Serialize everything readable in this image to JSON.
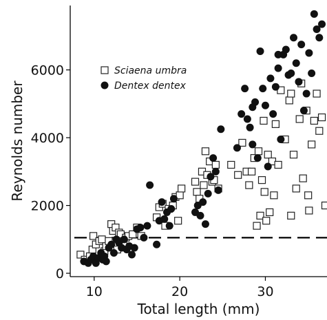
{
  "chart_data": {
    "type": "scatter",
    "xlabel": "Total length (mm)",
    "ylabel": "Reynolds number",
    "xlim": [
      7.2,
      37.2
    ],
    "ylim": [
      -100,
      7900
    ],
    "x_ticks": [
      10,
      20,
      30
    ],
    "y_ticks": [
      0,
      2000,
      4000,
      6000
    ],
    "grid": false,
    "legend_position": "top-left",
    "reference_line": {
      "y": 1050,
      "style": "dashed"
    },
    "series": [
      {
        "name": "Sciaena umbra",
        "marker": "open-square",
        "color": "#222222",
        "points": [
          [
            8.4,
            550
          ],
          [
            8.9,
            400
          ],
          [
            9.5,
            500
          ],
          [
            9.8,
            700
          ],
          [
            9.9,
            1100
          ],
          [
            10.2,
            850
          ],
          [
            10.6,
            950
          ],
          [
            10.9,
            1000
          ],
          [
            11.2,
            650
          ],
          [
            11.4,
            800
          ],
          [
            11.7,
            950
          ],
          [
            12.0,
            1450
          ],
          [
            12.2,
            1250
          ],
          [
            12.5,
            1350
          ],
          [
            12.7,
            700
          ],
          [
            12.9,
            1200
          ],
          [
            13.1,
            1150
          ],
          [
            13.4,
            900
          ],
          [
            13.7,
            1050
          ],
          [
            14.0,
            1100
          ],
          [
            14.5,
            1150
          ],
          [
            15.0,
            1350
          ],
          [
            15.5,
            1100
          ],
          [
            17.3,
            1650
          ],
          [
            17.6,
            1950
          ],
          [
            18.0,
            2050
          ],
          [
            18.3,
            1400
          ],
          [
            18.7,
            1900
          ],
          [
            19.2,
            2000
          ],
          [
            19.5,
            2250
          ],
          [
            19.8,
            1550
          ],
          [
            20.0,
            2300
          ],
          [
            20.2,
            2500
          ],
          [
            21.8,
            2700
          ],
          [
            22.0,
            2400
          ],
          [
            22.3,
            2200
          ],
          [
            22.6,
            3000
          ],
          [
            22.8,
            2600
          ],
          [
            23.0,
            3600
          ],
          [
            23.2,
            2900
          ],
          [
            23.5,
            3300
          ],
          [
            23.8,
            2700
          ],
          [
            24.0,
            2750
          ],
          [
            24.2,
            3200
          ],
          [
            24.5,
            2500
          ],
          [
            26.0,
            3200
          ],
          [
            26.8,
            2900
          ],
          [
            27.3,
            3850
          ],
          [
            27.8,
            3000
          ],
          [
            28.1,
            2600
          ],
          [
            28.4,
            3000
          ],
          [
            28.7,
            3400
          ],
          [
            29.0,
            1400
          ],
          [
            29.2,
            3600
          ],
          [
            29.4,
            1700
          ],
          [
            29.6,
            2750
          ],
          [
            29.9,
            2400
          ],
          [
            30.1,
            1550
          ],
          [
            30.3,
            3500
          ],
          [
            30.5,
            1800
          ],
          [
            30.8,
            3300
          ],
          [
            31.0,
            2300
          ],
          [
            31.2,
            4400
          ],
          [
            31.5,
            3200
          ],
          [
            31.8,
            5400
          ],
          [
            32.3,
            3950
          ],
          [
            32.8,
            5100
          ],
          [
            33.0,
            1700
          ],
          [
            33.3,
            3500
          ],
          [
            33.6,
            2500
          ],
          [
            34.0,
            4550
          ],
          [
            34.4,
            2800
          ],
          [
            34.8,
            4800
          ],
          [
            35.1,
            1850
          ],
          [
            35.4,
            3800
          ],
          [
            35.7,
            4500
          ],
          [
            36.0,
            5300
          ],
          [
            36.3,
            4200
          ],
          [
            36.6,
            4600
          ],
          [
            37.0,
            2000
          ],
          [
            35.0,
            2300
          ],
          [
            34.2,
            5600
          ],
          [
            33.0,
            5300
          ],
          [
            29.8,
            4500
          ]
        ]
      },
      {
        "name": "Dentex dentex",
        "marker": "filled-circle",
        "color": "#111111",
        "points": [
          [
            8.8,
            350
          ],
          [
            9.3,
            300
          ],
          [
            9.6,
            400
          ],
          [
            9.9,
            500
          ],
          [
            10.2,
            300
          ],
          [
            10.5,
            450
          ],
          [
            10.8,
            600
          ],
          [
            11.0,
            400
          ],
          [
            11.2,
            500
          ],
          [
            11.4,
            350
          ],
          [
            11.7,
            750
          ],
          [
            12.0,
            850
          ],
          [
            12.3,
            600
          ],
          [
            12.6,
            1000
          ],
          [
            12.9,
            900
          ],
          [
            13.2,
            750
          ],
          [
            13.5,
            1000
          ],
          [
            13.8,
            700
          ],
          [
            14.1,
            800
          ],
          [
            14.4,
            550
          ],
          [
            14.7,
            750
          ],
          [
            15.0,
            1300
          ],
          [
            15.4,
            1350
          ],
          [
            15.8,
            1050
          ],
          [
            16.2,
            1400
          ],
          [
            16.5,
            2600
          ],
          [
            17.3,
            850
          ],
          [
            17.6,
            1550
          ],
          [
            17.9,
            2100
          ],
          [
            18.2,
            1600
          ],
          [
            18.5,
            1800
          ],
          [
            18.8,
            1400
          ],
          [
            19.0,
            1900
          ],
          [
            19.3,
            2200
          ],
          [
            21.8,
            1800
          ],
          [
            22.1,
            2000
          ],
          [
            22.4,
            1700
          ],
          [
            22.7,
            2100
          ],
          [
            23.0,
            1450
          ],
          [
            23.3,
            2350
          ],
          [
            23.6,
            2850
          ],
          [
            23.9,
            3400
          ],
          [
            24.2,
            3000
          ],
          [
            24.5,
            2450
          ],
          [
            24.8,
            4250
          ],
          [
            26.7,
            3700
          ],
          [
            27.2,
            4700
          ],
          [
            27.6,
            5450
          ],
          [
            27.9,
            4550
          ],
          [
            28.2,
            4300
          ],
          [
            28.5,
            3800
          ],
          [
            28.8,
            5050
          ],
          [
            29.1,
            3400
          ],
          [
            29.4,
            6550
          ],
          [
            29.7,
            5450
          ],
          [
            30.0,
            4950
          ],
          [
            30.3,
            3150
          ],
          [
            30.6,
            5750
          ],
          [
            30.9,
            4700
          ],
          [
            31.2,
            5500
          ],
          [
            31.5,
            6050
          ],
          [
            31.8,
            3950
          ],
          [
            32.1,
            6450
          ],
          [
            32.4,
            6600
          ],
          [
            32.7,
            5850
          ],
          [
            33.0,
            5900
          ],
          [
            33.3,
            6950
          ],
          [
            33.6,
            6200
          ],
          [
            33.9,
            5650
          ],
          [
            34.2,
            6750
          ],
          [
            34.5,
            4800
          ],
          [
            34.8,
            5300
          ],
          [
            35.1,
            6500
          ],
          [
            35.4,
            5900
          ],
          [
            35.7,
            7650
          ],
          [
            36.0,
            7200
          ],
          [
            36.3,
            6950
          ],
          [
            36.6,
            7350
          ],
          [
            31.5,
            6450
          ],
          [
            28.5,
            4900
          ]
        ]
      }
    ]
  }
}
